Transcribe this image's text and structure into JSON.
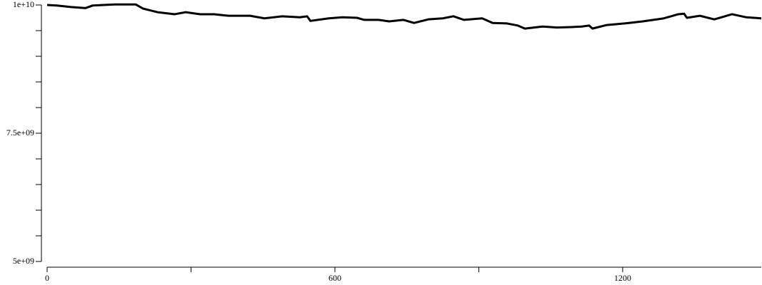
{
  "chart_data": {
    "type": "line",
    "color": "#000000",
    "x": [
      0,
      20,
      50,
      80,
      95,
      140,
      185,
      200,
      230,
      266,
      289,
      319,
      348,
      378,
      423,
      453,
      490,
      527,
      542,
      549,
      587,
      616,
      646,
      661,
      691,
      713,
      743,
      765,
      795,
      825,
      847,
      869,
      907,
      929,
      959,
      981,
      996,
      1033,
      1063,
      1093,
      1115,
      1130,
      1137,
      1167,
      1204,
      1242,
      1286,
      1316,
      1328,
      1334,
      1361,
      1391,
      1428,
      1458,
      1489
    ],
    "values": [
      10000000000,
      9990000000,
      9960000000,
      9940000000,
      9990000000,
      10010000000,
      10010000000,
      9930000000,
      9860000000,
      9820000000,
      9860000000,
      9820000000,
      9820000000,
      9790000000,
      9790000000,
      9740000000,
      9780000000,
      9760000000,
      9780000000,
      9690000000,
      9740000000,
      9760000000,
      9750000000,
      9710000000,
      9710000000,
      9680000000,
      9710000000,
      9650000000,
      9720000000,
      9740000000,
      9780000000,
      9710000000,
      9740000000,
      9650000000,
      9640000000,
      9600000000,
      9540000000,
      9580000000,
      9560000000,
      9570000000,
      9580000000,
      9600000000,
      9540000000,
      9610000000,
      9640000000,
      9680000000,
      9740000000,
      9820000000,
      9830000000,
      9750000000,
      9790000000,
      9720000000,
      9820000000,
      9760000000,
      9740000000
    ],
    "xlim": [
      0,
      1489
    ],
    "ylim": [
      5000000000,
      10000000000
    ],
    "xticks": [
      0,
      600,
      1200
    ],
    "xminor_ticks": [
      300,
      900
    ],
    "yticks": [
      {
        "value": 5000000000,
        "label": "5e+09"
      },
      {
        "value": 7500000000,
        "label": "7.5e+09"
      },
      {
        "value": 10000000000,
        "label": "1e+10"
      }
    ],
    "yminor_ticks": [
      5500000000,
      6000000000,
      6500000000,
      7000000000,
      8000000000,
      8500000000,
      9000000000,
      9500000000
    ]
  }
}
